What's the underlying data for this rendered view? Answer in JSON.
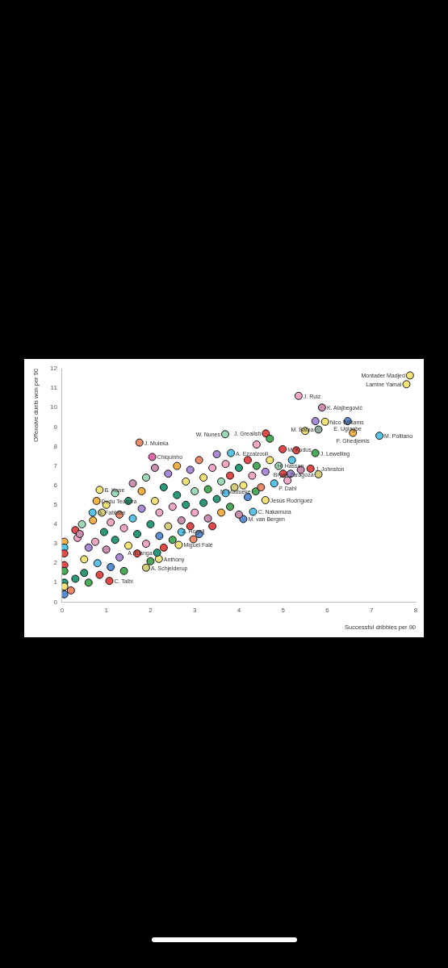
{
  "chart_data": {
    "type": "scatter",
    "xlabel": "Successful dribbles per 90",
    "ylabel": "Offensive duels won per 90",
    "xlim": [
      0,
      8
    ],
    "xticks": [
      0,
      1,
      2,
      3,
      4,
      5,
      6,
      7,
      8
    ],
    "ylim": [
      0,
      12
    ],
    "yticks": [
      0,
      1,
      2,
      3,
      4,
      5,
      6,
      7,
      8,
      9,
      10,
      11,
      12
    ],
    "grid": false,
    "legend": false,
    "marker": "circle",
    "series": [
      {
        "x": [
          7.87,
          7.79,
          5.35,
          5.88,
          5.95,
          6.46,
          5.73,
          6.58,
          7.18,
          5.8,
          5.73,
          4.99,
          5.62,
          5.8,
          5.17,
          5.1,
          1.75,
          2.04,
          4.61,
          3.82,
          0.85,
          0.78,
          0.69,
          1.9,
          1.07,
          2.19,
          2.15,
          2.64,
          2.97,
          4.1,
          4.32,
          4.6,
          4.38,
          3.69,
          0.05,
          0.05,
          0.05,
          0.05,
          0.05,
          0.05,
          0.05,
          0.05,
          0.2,
          0.3,
          0.35,
          0.45,
          0.3,
          0.4,
          0.5,
          0.5,
          0.6,
          0.6,
          0.7,
          0.75,
          0.8,
          0.85,
          0.9,
          0.95,
          1.0,
          1.0,
          1.1,
          1.1,
          1.2,
          1.2,
          1.3,
          1.3,
          1.4,
          1.4,
          1.5,
          1.5,
          1.6,
          1.6,
          1.7,
          1.7,
          1.8,
          1.8,
          1.9,
          1.9,
          2.0,
          2.0,
          2.1,
          2.1,
          2.2,
          2.2,
          2.3,
          2.3,
          2.4,
          2.4,
          2.5,
          2.5,
          2.6,
          2.6,
          2.7,
          2.7,
          2.8,
          2.8,
          2.9,
          2.9,
          3.0,
          3.0,
          3.1,
          3.1,
          3.2,
          3.2,
          3.3,
          3.3,
          3.4,
          3.4,
          3.5,
          3.5,
          3.6,
          3.6,
          3.7,
          3.7,
          3.8,
          3.8,
          3.9,
          4.0,
          4.0,
          4.1,
          4.2,
          4.2,
          4.3,
          4.4,
          4.5,
          4.6,
          4.7,
          4.8,
          4.9,
          5.0,
          4.4,
          4.7,
          5.3,
          5.5,
          5.2,
          5.4
        ],
        "values": [
          11.65,
          11.2,
          10.6,
          10.0,
          9.27,
          9.3,
          9.3,
          8.7,
          8.55,
          8.87,
          7.66,
          7.86,
          6.86,
          6.57,
          6.6,
          6.25,
          8.2,
          7.46,
          8.67,
          7.66,
          5.77,
          5.2,
          4.6,
          1.77,
          1.09,
          2.22,
          2.54,
          2.94,
          3.23,
          4.27,
          4.64,
          5.24,
          5.69,
          8.63,
          3.1,
          2.8,
          2.5,
          1.9,
          1.6,
          1.0,
          0.8,
          0.4,
          0.6,
          1.2,
          3.3,
          4.0,
          3.7,
          3.5,
          2.2,
          1.5,
          2.8,
          1.0,
          4.2,
          3.1,
          2.0,
          1.4,
          4.6,
          3.6,
          2.7,
          5.0,
          1.8,
          4.1,
          3.2,
          5.6,
          2.3,
          4.5,
          1.6,
          3.8,
          5.2,
          2.9,
          6.1,
          4.3,
          2.5,
          3.5,
          5.7,
          4.8,
          3.0,
          6.4,
          2.1,
          4.0,
          5.2,
          6.9,
          3.4,
          4.6,
          2.8,
          5.9,
          3.9,
          6.6,
          4.9,
          3.2,
          5.5,
          7.0,
          4.2,
          3.6,
          6.2,
          5.0,
          3.9,
          6.8,
          4.6,
          5.7,
          3.5,
          7.3,
          5.1,
          6.4,
          4.3,
          5.8,
          6.9,
          3.9,
          5.3,
          7.6,
          4.6,
          6.2,
          5.6,
          7.1,
          4.9,
          6.5,
          5.9,
          6.9,
          4.5,
          6.0,
          7.3,
          5.4,
          6.5,
          7.0,
          5.9,
          6.7,
          7.3,
          6.1,
          7.0,
          6.6,
          8.1,
          8.4,
          7.8,
          8.8,
          7.3,
          6.8
        ],
        "colors": [
          "#f4e27a",
          "#f4e27a",
          "#f2a7c6",
          "#c98fb0",
          "#f4e27a",
          "#5b8fd1",
          "#a98bd6",
          "#f6b24a",
          "#5bc4e6",
          "#8fa89a",
          "#4caa5a",
          "#e14b4b",
          "#e14b4b",
          "#d4cd7e",
          "#a98bd6",
          "#f2a7c6",
          "#e98a6b",
          "#e06aa8",
          "#e14b4b",
          "#5bc4e6",
          "#f4e27a",
          "#f6b24a",
          "#5bc4e6",
          "#d4cd7e",
          "#e14b4b",
          "#f4e27a",
          "#2c9a7a",
          "#f4e27a",
          "#e98a6b",
          "#5b8fd1",
          "#5bc4e6",
          "#f4e27a",
          "#4caa5a",
          "#9ed9b8",
          "#f6b24a",
          "#5bc4e6",
          "#e14b4b",
          "#e14b4b",
          "#4caa5a",
          "#2c9a7a",
          "#f4e27a",
          "#5b8fd1",
          "#e98a6b",
          "#2c9a7a",
          "#f2a7c6",
          "#9ed9b8",
          "#e14b4b",
          "#c98fb0",
          "#f4e27a",
          "#2c9a7a",
          "#a98bd6",
          "#4caa5a",
          "#f6b24a",
          "#f2a7c6",
          "#5bc4e6",
          "#e14b4b",
          "#d4cd7e",
          "#2c9a7a",
          "#c98fb0",
          "#f4e27a",
          "#5b8fd1",
          "#f2a7c6",
          "#2c9a7a",
          "#9ed9b8",
          "#a98bd6",
          "#e98a6b",
          "#4caa5a",
          "#f2a7c6",
          "#2c9a7a",
          "#f4e27a",
          "#c98fb0",
          "#5bc4e6",
          "#e14b4b",
          "#2c9a7a",
          "#f6b24a",
          "#a98bd6",
          "#f2a7c6",
          "#9ed9b8",
          "#4caa5a",
          "#2c9a7a",
          "#f4e27a",
          "#c98fb0",
          "#5b8fd1",
          "#f2a7c6",
          "#e14b4b",
          "#2c9a7a",
          "#d4cd7e",
          "#a98bd6",
          "#f2a7c6",
          "#4caa5a",
          "#2c9a7a",
          "#f6b24a",
          "#c98fb0",
          "#5bc4e6",
          "#f4e27a",
          "#2c9a7a",
          "#e14b4b",
          "#a98bd6",
          "#f2a7c6",
          "#9ed9b8",
          "#5b8fd1",
          "#e98a6b",
          "#2c9a7a",
          "#f4e27a",
          "#c98fb0",
          "#4caa5a",
          "#f2a7c6",
          "#e14b4b",
          "#2c9a7a",
          "#a98bd6",
          "#f6b24a",
          "#9ed9b8",
          "#5bc4e6",
          "#f2a7c6",
          "#4caa5a",
          "#e14b4b",
          "#d4cd7e",
          "#2c9a7a",
          "#c98fb0",
          "#f4e27a",
          "#e14b4b",
          "#5b8fd1",
          "#f2a7c6",
          "#4caa5a",
          "#e98a6b",
          "#a98bd6",
          "#f4e27a",
          "#5bc4e6",
          "#9ed9b8",
          "#e14b4b",
          "#f2a7c6",
          "#4caa5a",
          "#e14b4b",
          "#f4e27a",
          "#5bc4e6",
          "#c98fb0"
        ]
      }
    ],
    "annotations": [
      {
        "text": "Montader Madjed",
        "x": 7.87,
        "y": 11.65
      },
      {
        "text": "Lamine Yamal",
        "x": 7.79,
        "y": 11.2
      },
      {
        "text": "J. Ruiz",
        "x": 5.35,
        "y": 10.6
      },
      {
        "text": "K. Alajbegović",
        "x": 5.88,
        "y": 10.0
      },
      {
        "text": "Nico Williams",
        "x": 5.95,
        "y": 9.27
      },
      {
        "text": "E. Ugiagbe",
        "x": 6.46,
        "y": 9.3
      },
      {
        "text": "F. Ghedjemis",
        "x": 6.58,
        "y": 8.7
      },
      {
        "text": "M. Politano",
        "x": 7.18,
        "y": 8.55
      },
      {
        "text": "M. Batna",
        "x": 5.8,
        "y": 8.87
      },
      {
        "text": "J. Lewelling",
        "x": 5.73,
        "y": 7.66
      },
      {
        "text": "M. Kudus",
        "x": 4.99,
        "y": 7.86
      },
      {
        "text": "J. Johnston",
        "x": 5.62,
        "y": 6.86
      },
      {
        "text": "Bryan Zaragoza",
        "x": 5.8,
        "y": 6.57
      },
      {
        "text": "H. Hassan",
        "x": 5.17,
        "y": 6.6
      },
      {
        "text": "P. Dahl",
        "x": 5.1,
        "y": 6.25
      },
      {
        "text": "J. Muleka",
        "x": 1.75,
        "y": 8.2
      },
      {
        "text": "Chiquinho",
        "x": 2.04,
        "y": 7.46
      },
      {
        "text": "J. Grealish",
        "x": 4.61,
        "y": 8.67
      },
      {
        "text": "A. Ezzalzouli",
        "x": 3.82,
        "y": 7.66
      },
      {
        "text": "B. Kone",
        "x": 0.85,
        "y": 5.77
      },
      {
        "text": "Dudu Teodora",
        "x": 0.78,
        "y": 5.2
      },
      {
        "text": "G. Fabbian",
        "x": 0.69,
        "y": 4.6
      },
      {
        "text": "A. Schjelderup",
        "x": 1.9,
        "y": 1.77
      },
      {
        "text": "C. Talbi",
        "x": 1.07,
        "y": 1.09
      },
      {
        "text": "Anthony",
        "x": 2.19,
        "y": 2.22
      },
      {
        "text": "A. Elanga",
        "x": 2.15,
        "y": 2.54
      },
      {
        "text": "Miguel Falé",
        "x": 2.64,
        "y": 2.94
      },
      {
        "text": "Z. Rogelj",
        "x": 2.97,
        "y": 3.23
      },
      {
        "text": "M. van Bergen",
        "x": 4.1,
        "y": 4.27
      },
      {
        "text": "C. Nakamura",
        "x": 4.32,
        "y": 4.64
      },
      {
        "text": "Jesús Rodríguez",
        "x": 4.6,
        "y": 5.24
      },
      {
        "text": "N. Madueke",
        "x": 4.38,
        "y": 5.69
      },
      {
        "text": "W. Nunes",
        "x": 3.69,
        "y": 8.63
      }
    ]
  }
}
